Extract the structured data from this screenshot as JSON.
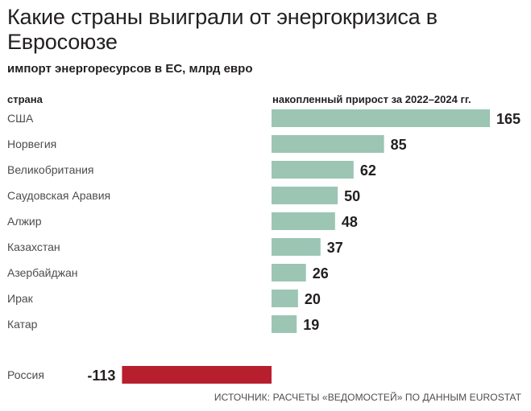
{
  "header": {
    "title": "Какие страны выиграли от энергокризиса в Евросоюзе",
    "subtitle": "импорт энергоресурсов в ЕС, млрд евро",
    "col_left": "страна",
    "col_right": "накопленный прирост за 2022–2024 гг."
  },
  "footer": {
    "source": "ИСТОЧНИК: РАСЧЕТЫ «ВЕДОМОСТЕЙ» ПО ДАННЫМ EUROSTAT"
  },
  "colors": {
    "positive": "#9cc5b4",
    "negative": "#b81f2e",
    "text": "#231f20",
    "label": "#4d4d4d"
  },
  "chart_data": {
    "type": "bar",
    "orientation": "horizontal",
    "title": "Какие страны выиграли от энергокризиса в Евросоюзе",
    "subtitle": "импорт энергоресурсов в ЕС, млрд евро",
    "xlabel": "накопленный прирост за 2022–2024 гг.",
    "ylabel": "страна",
    "categories": [
      "США",
      "Норвегия",
      "Великобритания",
      "Саудовская Аравия",
      "Алжир",
      "Казахстан",
      "Азербайджан",
      "Ирак",
      "Катар",
      "Россия"
    ],
    "values": [
      165,
      85,
      62,
      50,
      48,
      37,
      26,
      20,
      19,
      -113
    ],
    "value_labels": [
      "165",
      "85",
      "62",
      "50",
      "48",
      "37",
      "26",
      "20",
      "19",
      "-113"
    ]
  }
}
